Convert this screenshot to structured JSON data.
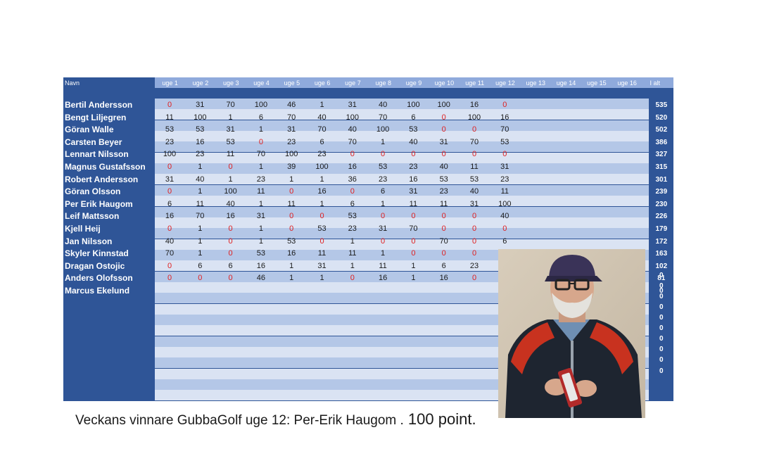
{
  "table": {
    "name_header": "Navn",
    "week_headers": [
      "uge 1",
      "uge 2",
      "uge 3",
      "uge 4",
      "uge 5",
      "uge 6",
      "uge 7",
      "uge 8",
      "uge 9",
      "uge 10",
      "uge 11",
      "uge 12",
      "uge 13",
      "uge 14",
      "uge 15",
      "uge 16"
    ],
    "total_header": "I alt",
    "rows": [
      {
        "name": "Bertil Andersson",
        "scores": [
          "0",
          "31",
          "70",
          "100",
          "46",
          "1",
          "31",
          "40",
          "100",
          "100",
          "16",
          "0"
        ],
        "total": "535"
      },
      {
        "name": "Bengt Liljegren",
        "scores": [
          "11",
          "100",
          "1",
          "6",
          "70",
          "40",
          "100",
          "70",
          "6",
          "0",
          "100",
          "16"
        ],
        "total": "520"
      },
      {
        "name": "Göran Walle",
        "scores": [
          "53",
          "53",
          "31",
          "1",
          "31",
          "70",
          "40",
          "100",
          "53",
          "0",
          "0",
          "70"
        ],
        "total": "502"
      },
      {
        "name": "Carsten Beyer",
        "scores": [
          "23",
          "16",
          "53",
          "0",
          "23",
          "6",
          "70",
          "1",
          "40",
          "31",
          "70",
          "53"
        ],
        "total": "386"
      },
      {
        "name": "Lennart Nilsson",
        "scores": [
          "100",
          "23",
          "11",
          "70",
          "100",
          "23",
          "0",
          "0",
          "0",
          "0",
          "0",
          "0"
        ],
        "total": "327"
      },
      {
        "name": "Magnus Gustafsson",
        "scores": [
          "0",
          "1",
          "0",
          "1",
          "39",
          "100",
          "16",
          "53",
          "23",
          "40",
          "11",
          "31"
        ],
        "total": "315"
      },
      {
        "name": "Robert Andersson",
        "scores": [
          "31",
          "40",
          "1",
          "23",
          "1",
          "1",
          "36",
          "23",
          "16",
          "53",
          "53",
          "23"
        ],
        "total": "301"
      },
      {
        "name": "Göran Olsson",
        "scores": [
          "0",
          "1",
          "100",
          "11",
          "0",
          "16",
          "0",
          "6",
          "31",
          "23",
          "40",
          "11"
        ],
        "total": "239"
      },
      {
        "name": "Per Erik Haugom",
        "scores": [
          "6",
          "11",
          "40",
          "1",
          "11",
          "1",
          "6",
          "1",
          "11",
          "11",
          "31",
          "100"
        ],
        "total": "230"
      },
      {
        "name": "Leif Mattsson",
        "scores": [
          "16",
          "70",
          "16",
          "31",
          "0",
          "0",
          "53",
          "0",
          "0",
          "0",
          "0",
          "40"
        ],
        "total": "226"
      },
      {
        "name": "Kjell Heij",
        "scores": [
          "0",
          "1",
          "0",
          "1",
          "0",
          "53",
          "23",
          "31",
          "70",
          "0",
          "0",
          "0"
        ],
        "total": "179"
      },
      {
        "name": "Jan Nilsson",
        "scores": [
          "40",
          "1",
          "0",
          "1",
          "53",
          "0",
          "1",
          "0",
          "0",
          "70",
          "0",
          "6"
        ],
        "total": "172"
      },
      {
        "name": "Skyler Kinnstad",
        "scores": [
          "70",
          "1",
          "0",
          "53",
          "16",
          "11",
          "11",
          "1",
          "0",
          "0",
          "0",
          ""
        ],
        "total": "163"
      },
      {
        "name": "Dragan Ostojic",
        "scores": [
          "0",
          "6",
          "6",
          "16",
          "1",
          "31",
          "1",
          "11",
          "1",
          "6",
          "23",
          ""
        ],
        "total": "102"
      },
      {
        "name": "Anders Olofsson",
        "scores": [
          "0",
          "0",
          "0",
          "46",
          "1",
          "1",
          "0",
          "16",
          "1",
          "16",
          "0",
          ""
        ],
        "total": "81"
      },
      {
        "name": "Marcus Ekelund",
        "scores": [],
        "total": "0"
      }
    ],
    "extra_totals": [
      "0",
      "0",
      "0",
      "0",
      "0",
      "0",
      "0",
      "0",
      "0",
      "0"
    ]
  },
  "caption": {
    "text": "Veckans vinnare GubbaGolf uge 12: Per-Erik Haugom .",
    "points": " 100 point."
  },
  "colors": {
    "sheet_blue": "#2f5597",
    "stripe_dark": "#b4c7e7",
    "stripe_light": "#dae3f3",
    "zero_red": "#e02020"
  }
}
